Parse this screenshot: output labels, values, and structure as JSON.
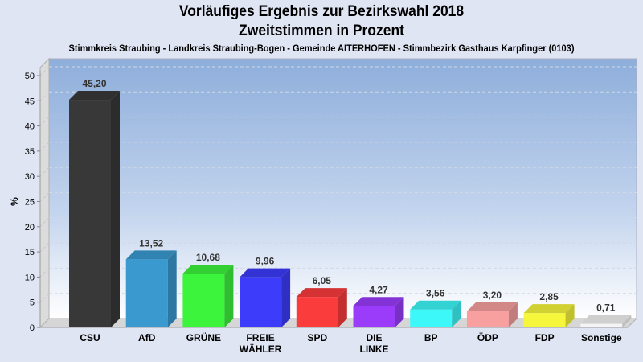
{
  "chart_data": {
    "type": "bar",
    "title": "Vorläufiges Ergebnis zur Bezirkswahl 2018",
    "subtitle": "Zweitstimmen in Prozent",
    "caption": "Stimmkreis Straubing - Landkreis Straubing-Bogen - Gemeinde AITERHOFEN - Stimmbezirk Gasthaus Karpfinger (0103)",
    "xlabel": "",
    "ylabel": "%",
    "ylim": [
      0,
      50
    ],
    "yticks": [
      0,
      5,
      10,
      15,
      20,
      25,
      30,
      35,
      40,
      45,
      50
    ],
    "grid": true,
    "categories": [
      [
        "CSU"
      ],
      [
        "AfD"
      ],
      [
        "GRÜNE"
      ],
      [
        "FREIE",
        "WÄHLER"
      ],
      [
        "SPD"
      ],
      [
        "DIE",
        "LINKE"
      ],
      [
        "BP"
      ],
      [
        "ÖDP"
      ],
      [
        "FDP"
      ],
      [
        "Sonstige"
      ]
    ],
    "values": [
      45.2,
      13.52,
      10.68,
      9.96,
      6.05,
      4.27,
      3.56,
      3.2,
      2.85,
      0.71
    ],
    "value_labels": [
      "45,20",
      "13,52",
      "10,68",
      "9,96",
      "6,05",
      "4,27",
      "3,56",
      "3,20",
      "2,85",
      "0,71"
    ],
    "colors": [
      "#383838",
      "#3a9ad0",
      "#3cf43c",
      "#3c3cfa",
      "#fa3c3c",
      "#9a3cfa",
      "#3cf8f8",
      "#f8a0a0",
      "#f6f63c",
      "#f4f4f4"
    ]
  }
}
